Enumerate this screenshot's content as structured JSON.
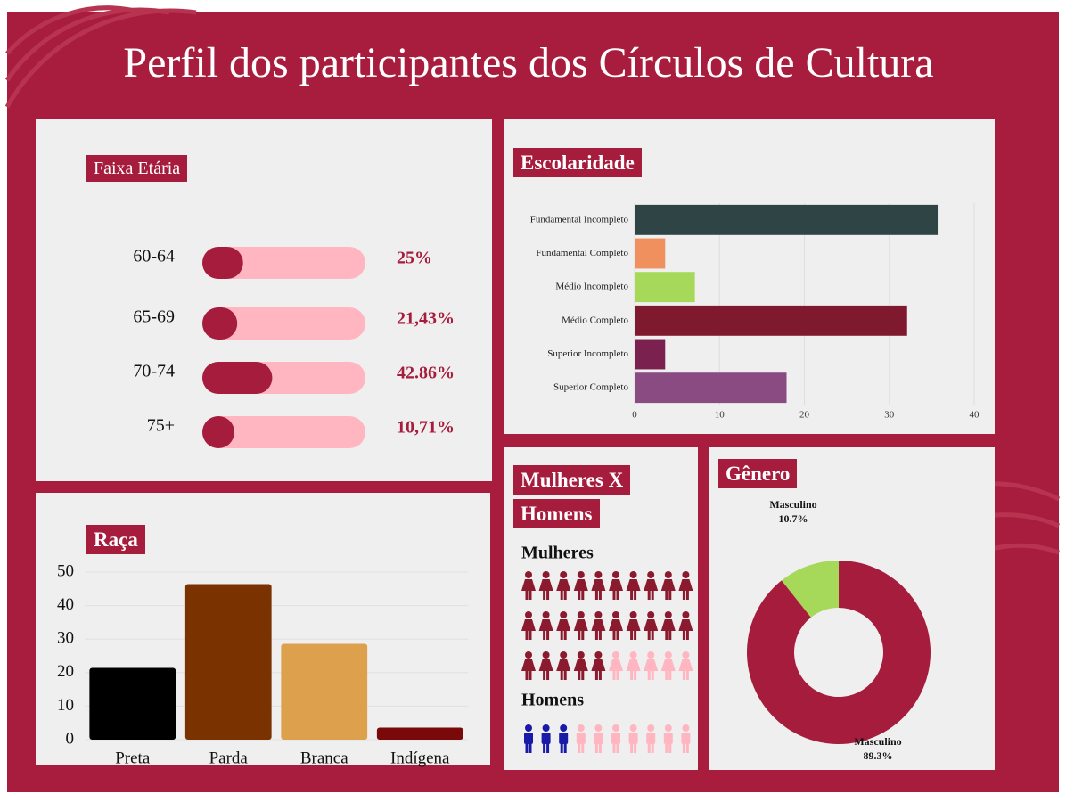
{
  "title": "Perfil dos participantes dos Círculos de Cultura",
  "chart_data": [
    {
      "type": "progress",
      "title": "Faixa Etária",
      "categories": [
        "60-64",
        "65-69",
        "70-74",
        "75+"
      ],
      "values": [
        25,
        21.43,
        42.86,
        10.71
      ],
      "value_labels": [
        "25%",
        "21,43%",
        "42.86%",
        "10,71%"
      ],
      "xlim": [
        0,
        100
      ],
      "color": "#a61c3c",
      "track_color": "#ffb6c1"
    },
    {
      "type": "bar",
      "orientation": "horizontal",
      "title": "Escolaridade",
      "categories": [
        "Fundamental Incompleto",
        "Fundamental Completo",
        "Médio Incompleto",
        "Médio Completo",
        "Superior Incompleto",
        "Superior Completo"
      ],
      "values": [
        35.7,
        3.6,
        7.1,
        32.1,
        3.6,
        17.9
      ],
      "colors": [
        "#2f4444",
        "#f0905e",
        "#a6d85a",
        "#7f1a2e",
        "#7b2150",
        "#8a4b82"
      ],
      "xlim": [
        0,
        40
      ],
      "xticks": [
        0,
        10,
        20,
        30,
        40
      ],
      "grid": true
    },
    {
      "type": "bar",
      "title": "Raça",
      "categories": [
        "Preta",
        "Parda",
        "Branca",
        "Indígena"
      ],
      "values": [
        21.4,
        46.4,
        28.6,
        3.6
      ],
      "colors": [
        "#000000",
        "#7a3300",
        "#dda14d",
        "#7a0a0a"
      ],
      "ylim": [
        0,
        50
      ],
      "yticks": [
        0,
        10,
        20,
        30,
        40,
        50
      ],
      "grid": true
    },
    {
      "type": "pictogram",
      "title": "Mulheres X Homens",
      "groups": [
        {
          "name": "Mulheres",
          "value": 25,
          "total": 30,
          "color": "#8b1a2e",
          "icon": "woman"
        },
        {
          "name": "Homens",
          "value": 3,
          "total": 10,
          "color": "#1a1aa8",
          "icon": "man"
        }
      ],
      "empty_color": "#ffb6c1"
    },
    {
      "type": "donut",
      "title": "Gênero",
      "categories": [
        "Masculino",
        "Masculino"
      ],
      "values": [
        10.7,
        89.3
      ],
      "value_labels": [
        "10.7%",
        "89.3%"
      ],
      "colors": [
        "#a6d85a",
        "#a61c3c"
      ]
    }
  ]
}
